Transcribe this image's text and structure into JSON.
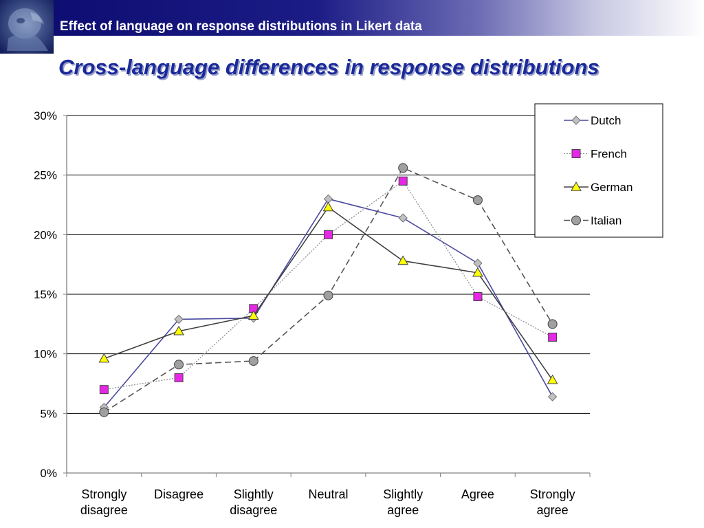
{
  "header": {
    "title": "Effect of language on response distributions in Likert data"
  },
  "slide": {
    "title": "Cross-language differences in response distributions"
  },
  "chart_data": {
    "type": "line",
    "categories": [
      [
        "Strongly",
        "disagree"
      ],
      [
        "Disagree"
      ],
      [
        "Slightly",
        "disagree"
      ],
      [
        "Neutral"
      ],
      [
        "Slightly",
        "agree"
      ],
      [
        "Agree"
      ],
      [
        "Strongly",
        "agree"
      ]
    ],
    "yticks": [
      "0%",
      "5%",
      "10%",
      "15%",
      "20%",
      "25%",
      "30%"
    ],
    "ylim": [
      0,
      30
    ],
    "grid": true,
    "legend_position": "top-right",
    "series": [
      {
        "name": "Dutch",
        "values": [
          5.5,
          12.9,
          13.0,
          23.0,
          21.4,
          17.6,
          6.4
        ],
        "color": "#4a4aa0",
        "dash": "solid",
        "marker": "diamond",
        "marker_fill": "#c0c0c0"
      },
      {
        "name": "French",
        "values": [
          7.0,
          8.0,
          13.8,
          20.0,
          24.5,
          14.8,
          11.4
        ],
        "color": "#909090",
        "dash": "dotted",
        "marker": "square",
        "marker_fill": "#e628e6"
      },
      {
        "name": "German",
        "values": [
          9.6,
          11.9,
          13.2,
          22.3,
          17.8,
          16.8,
          7.8
        ],
        "color": "#404040",
        "dash": "solid",
        "marker": "triangle",
        "marker_fill": "#ffff00"
      },
      {
        "name": "Italian",
        "values": [
          5.1,
          9.1,
          9.4,
          14.9,
          25.6,
          22.9,
          12.5
        ],
        "color": "#555555",
        "dash": "dashed",
        "marker": "circle",
        "marker_fill": "#a0a0a0"
      }
    ]
  }
}
